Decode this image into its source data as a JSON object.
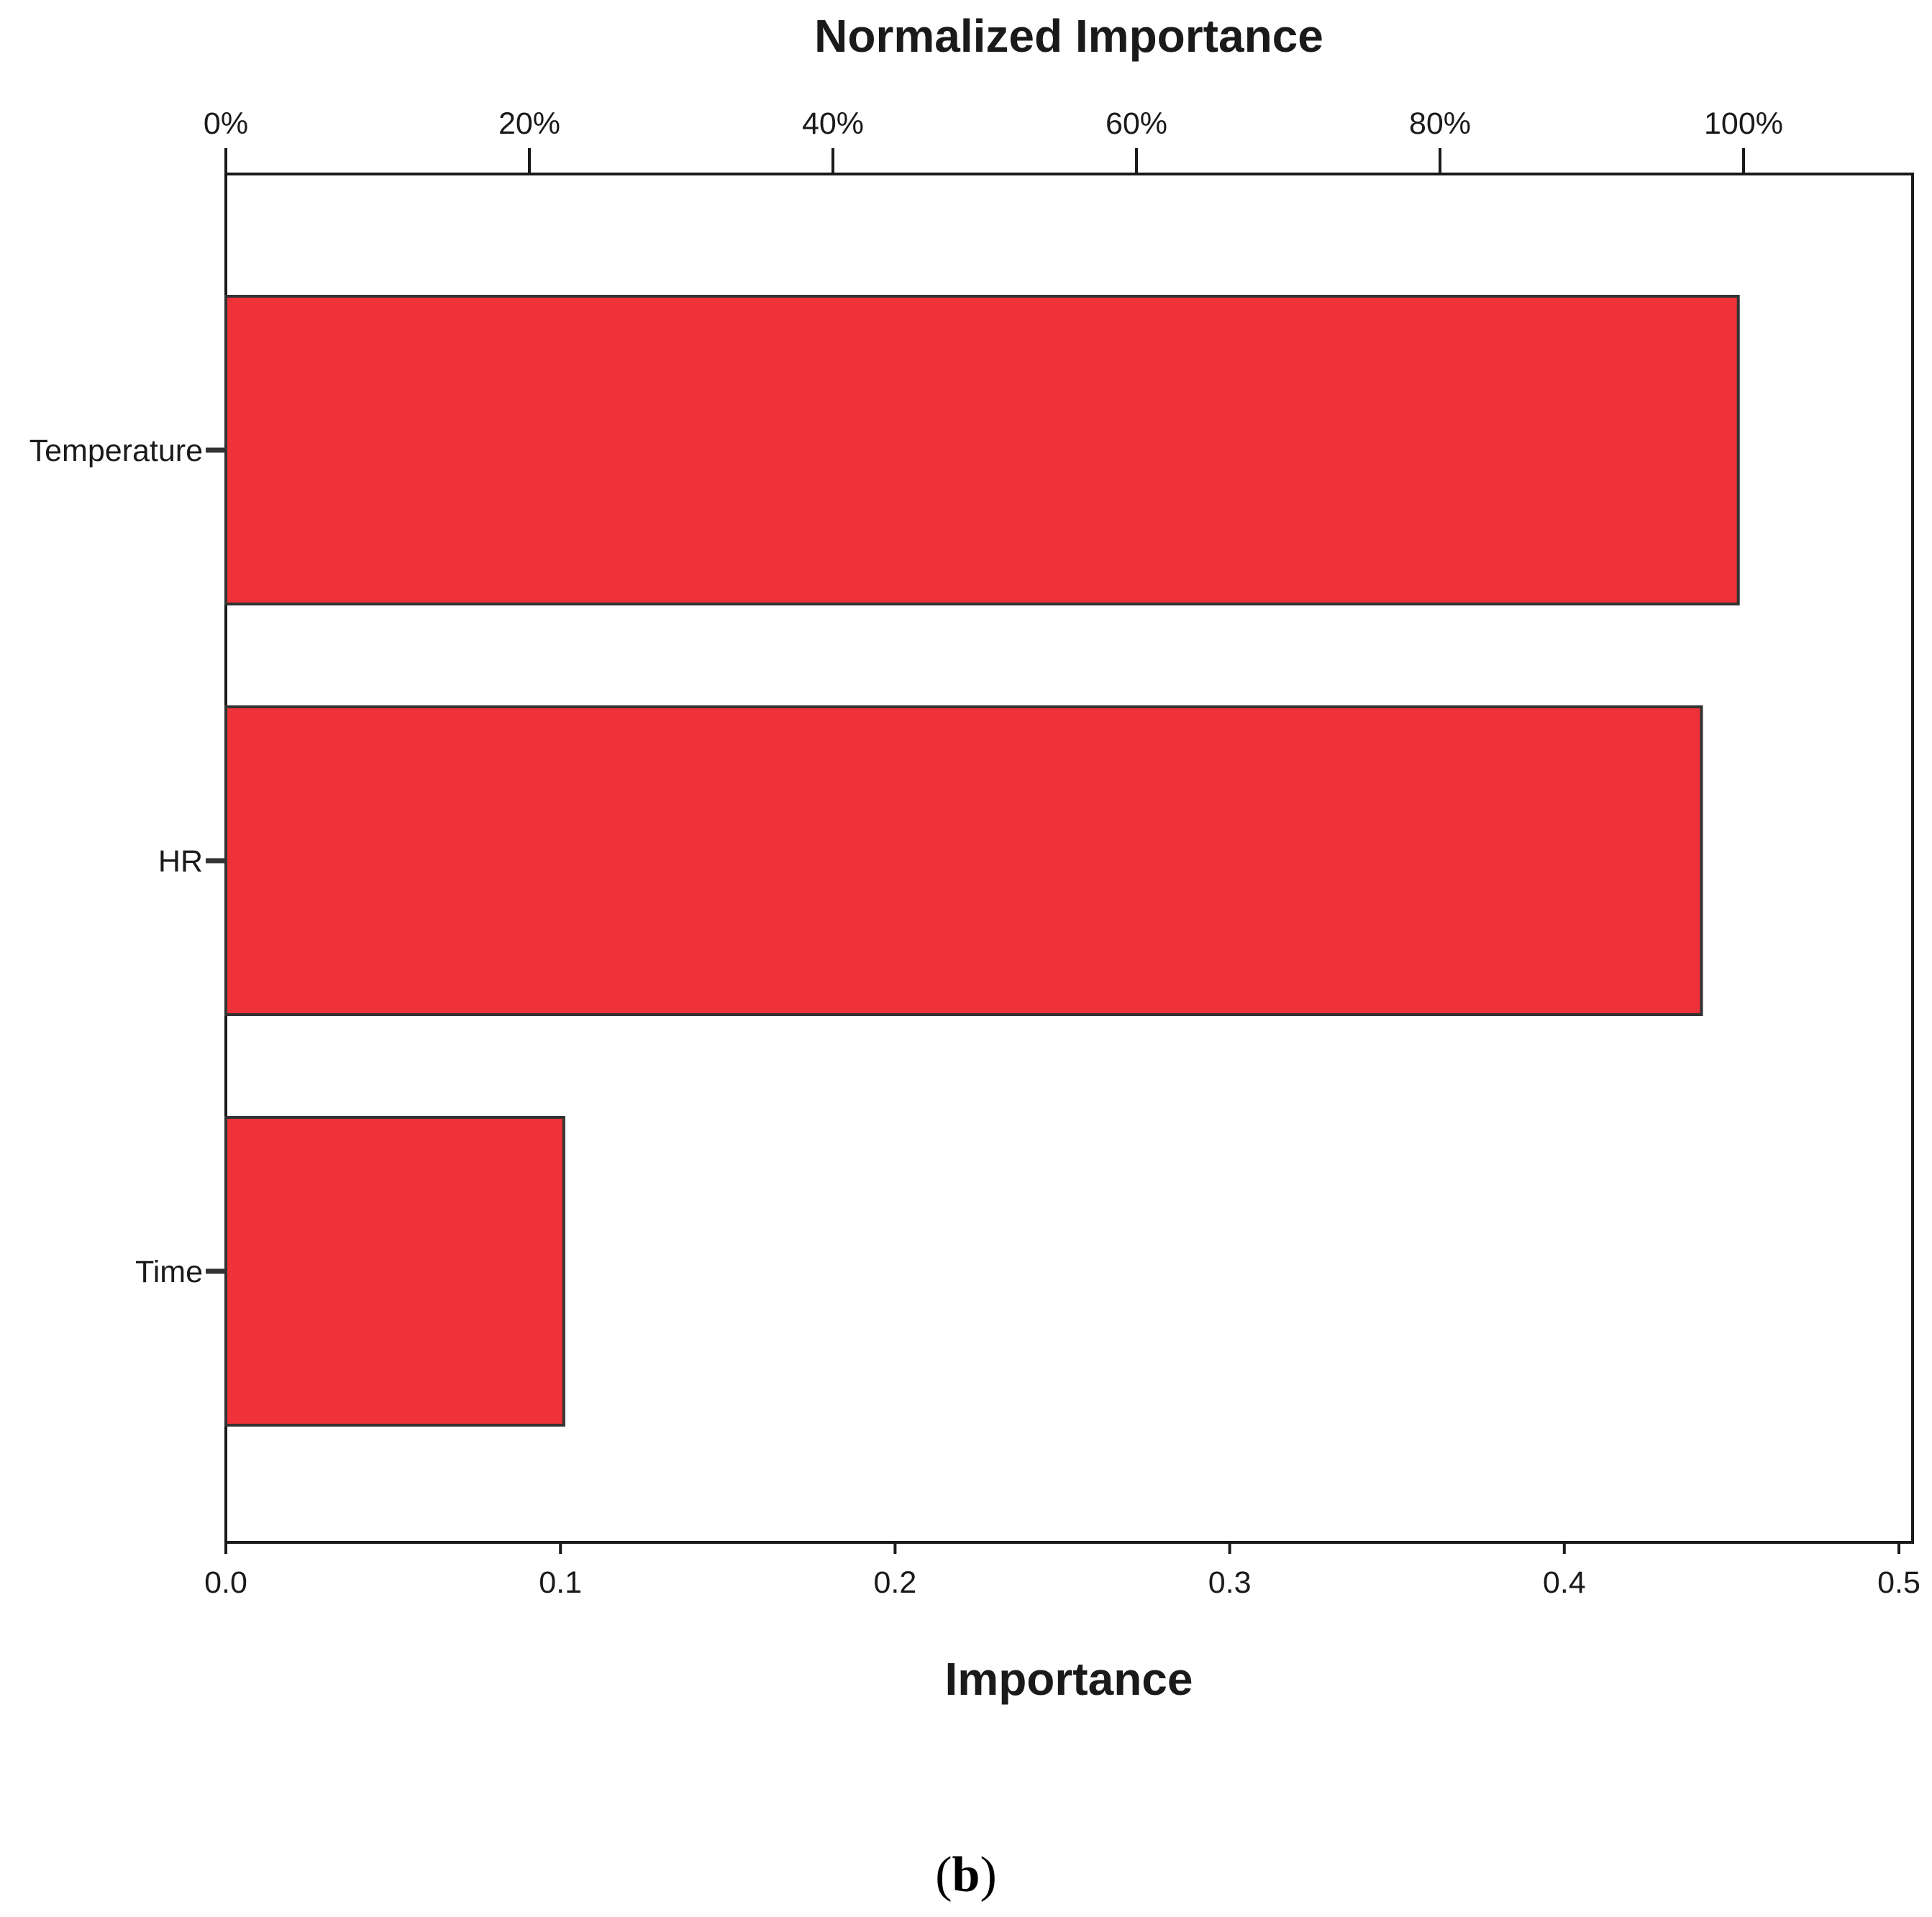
{
  "chart_data": {
    "type": "bar",
    "orientation": "horizontal",
    "categories": [
      "Temperature",
      "HR",
      "Time"
    ],
    "values": [
      0.452,
      0.441,
      0.101
    ],
    "normalized_importance_pct": [
      100,
      97.6,
      22.3
    ],
    "xlabel": "Importance",
    "x2label": "Normalized Importance",
    "xlim": [
      0,
      0.5
    ],
    "x_ticks": [
      "0.0",
      "0.1",
      "0.2",
      "0.3",
      "0.4",
      "0.5"
    ],
    "x2_ticks": [
      "0%",
      "20%",
      "40%",
      "60%",
      "80%",
      "100%"
    ],
    "grid": false,
    "legend": "none",
    "bar_color": "#ef323a",
    "caption_open": "(",
    "caption_letter": "b",
    "caption_close": ")"
  }
}
